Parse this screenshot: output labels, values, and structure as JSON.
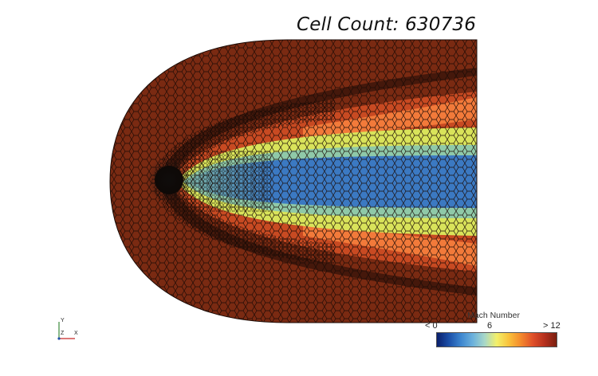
{
  "viewer": {
    "cell_count_label": "Cell Count: 630736"
  },
  "legend": {
    "title": "Mach Number",
    "tick_min": "< 0",
    "tick_mid": "6",
    "tick_max": "> 12",
    "colormap": [
      "#0a1f6b",
      "#1b4fa8",
      "#3d86cf",
      "#6cb1dc",
      "#a8d8c8",
      "#f3f06a",
      "#f9c23c",
      "#f48a2c",
      "#e0502a",
      "#b6301e",
      "#7a1f10"
    ]
  },
  "axes_triad": {
    "y_label": "Y",
    "z_label": "Z",
    "x_label": "X"
  },
  "colors": {
    "freestream": "#7a2a12",
    "mesh_line": "#1a0a05",
    "wake_core": "#3b79c2",
    "shear_yellow": "#d9e35a",
    "shear_orange": "#f27a3a"
  }
}
